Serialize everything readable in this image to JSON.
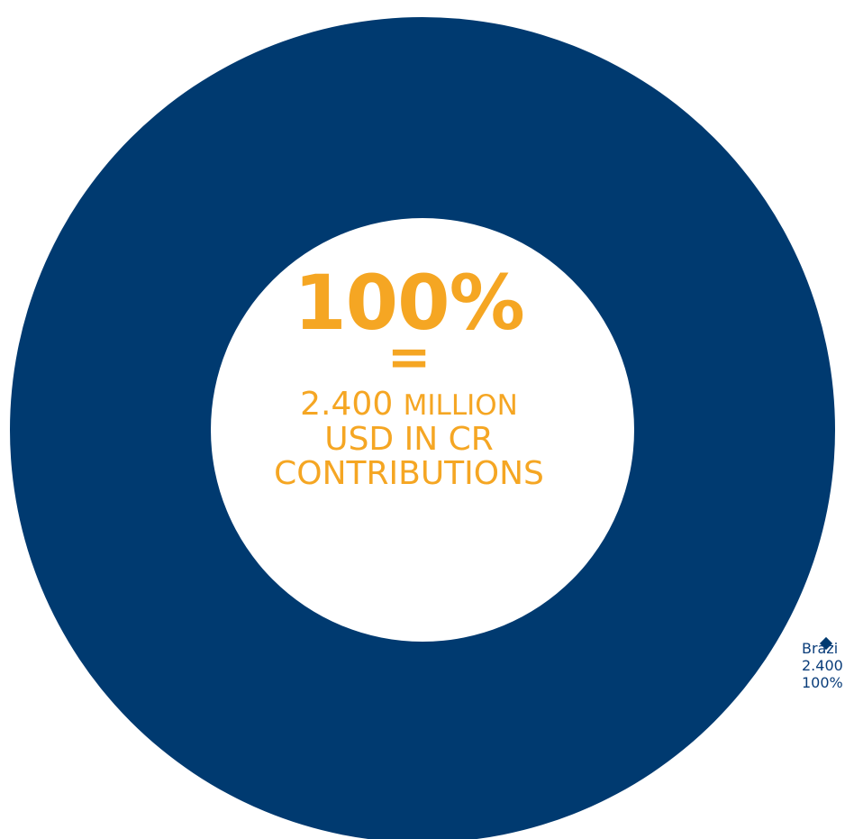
{
  "colors": {
    "ring": "#003a70",
    "accent": "#f5a623",
    "label": "#0a3d7a"
  },
  "center": {
    "percent": "100%",
    "equals": "=",
    "amount": "2.400",
    "unit": "MILLION",
    "line2": "USD IN CR",
    "line3": "CONTRIBUTIONS"
  },
  "chart_data": {
    "type": "pie",
    "variant": "donut",
    "categories": [
      "Brazil"
    ],
    "values": [
      2400
    ],
    "percentages": [
      100
    ],
    "slice_labels": [
      {
        "line1": "Brazi",
        "line2": "2.400",
        "line3": "100%"
      }
    ],
    "legend": "none"
  }
}
